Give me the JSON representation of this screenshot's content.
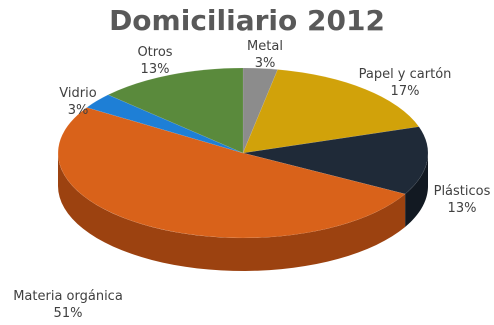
{
  "chart_data": {
    "type": "pie",
    "title": "Domiciliario 2012",
    "slices": [
      {
        "name": "Metal",
        "value": 3,
        "label": "3%",
        "color": "#8c8c8c",
        "side": "#5f5f5f"
      },
      {
        "name": "Papel y cartón",
        "value": 17,
        "label": "17%",
        "color": "#d1a20a",
        "side": "#8f6c00"
      },
      {
        "name": "Plásticos",
        "value": 13,
        "label": "13%",
        "color": "#1f2a38",
        "side": "#121922"
      },
      {
        "name": "Materia orgánica",
        "value": 51,
        "label": "51%",
        "color": "#d9621a",
        "side": "#9c4210"
      },
      {
        "name": "Vidrio",
        "value": 3,
        "label": "3%",
        "color": "#1e7fd6",
        "side": "#135b9c"
      },
      {
        "name": "Otros",
        "value": 13,
        "label": "13%",
        "color": "#5a8a3c",
        "side": "#3b6126"
      }
    ],
    "legend": "none",
    "style": "3d"
  }
}
